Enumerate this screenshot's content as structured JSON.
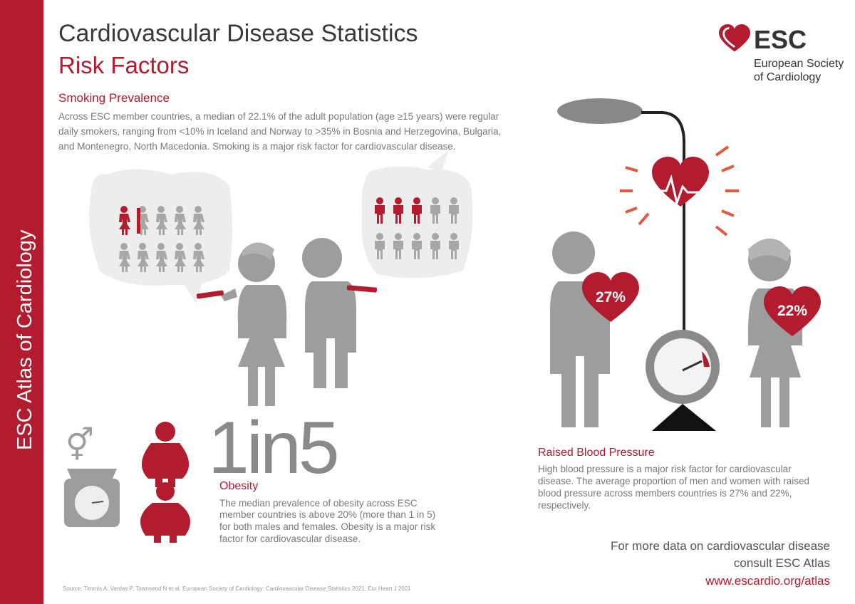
{
  "sidebar": {
    "text": "ESC Atlas of Cardiology"
  },
  "header": {
    "title": "Cardiovascular Disease Statistics",
    "subtitle": "Risk Factors"
  },
  "logo": {
    "acronym": "ESC",
    "name_lines": [
      "European Society",
      "of Cardiology"
    ]
  },
  "smoking": {
    "title": "Smoking Prevalence",
    "lines": [
      "Across ESC member countries, a median of 22.1% of the adult population (age ≥15 years) were regular",
      "daily smokers, ranging from <10% in Iceland and Norway to >35% in Bosnia and Herzegovina, Bulgaria,",
      "and Montenegro, North Macedonia. Smoking is a major risk factor for cardiovascular disease."
    ]
  },
  "obesity": {
    "headline": "1in5",
    "title": "Obesity",
    "lines": [
      "The median prevalence of obesity across ESC",
      "member countries is above 20% (more than 1 in 5)",
      "for both males and females. Obesity is a major risk",
      "factor for cardiovascular disease."
    ]
  },
  "blood_pressure": {
    "men": "27%",
    "women": "22%",
    "title": "Raised Blood Pressure",
    "lines": [
      "High blood pressure is a major risk factor for cardiovascular",
      "disease. The average proportion of men and women with raised",
      "blood pressure across members countries is 27% and 22%,",
      "respectively."
    ]
  },
  "footer": {
    "lines": [
      "For more data on cardiovascular disease",
      "consult ESC Atlas"
    ],
    "url": "www.escardio.org/atlas",
    "source": "Source: Timmis A, Vardas P, Townsend N et al. European Society of Cardiology: Cardiovascular Disease Statistics 2021, Eur Heart J 2021"
  }
}
